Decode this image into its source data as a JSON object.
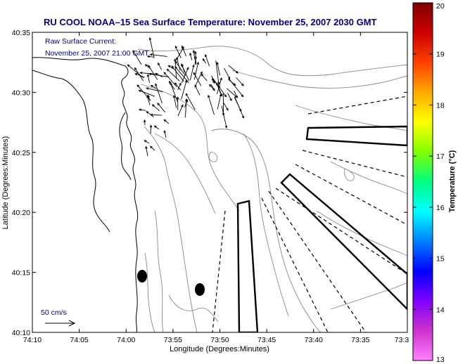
{
  "title": "RU COOL  NOAA–15  Sea Surface Temperature:  November 25, 2007 2030 GMT",
  "annotation": {
    "line1": "Raw Surface Current:",
    "line2": "November 25, 2007 21:00 GMT"
  },
  "scale": {
    "label": "50 cm/s"
  },
  "x_axis": {
    "label": "Longitude (Degrees:Minutes)",
    "ticks": [
      "74:10",
      "74:05",
      "74:00",
      "73:55",
      "73:50",
      "73:45",
      "73:40",
      "73:35",
      "73:3"
    ]
  },
  "y_axis": {
    "label": "Latitude (Degrees:Minutes)",
    "ticks": [
      "40:35",
      "40:30",
      "40:25",
      "40:20",
      "40:15",
      "40:10"
    ]
  },
  "colorbar": {
    "label": "Temperature (°C)",
    "ticks": [
      "20",
      "19",
      "18",
      "17",
      "16",
      "15",
      "14",
      "13"
    ],
    "min": 13,
    "max": 20,
    "colors": [
      "#ff80ff",
      "#cc33cc",
      "#8000ff",
      "#0000ff",
      "#0080ff",
      "#00ffff",
      "#00ff80",
      "#80ff00",
      "#ffff00",
      "#ffaa00",
      "#ff4000",
      "#cc0000",
      "#800000"
    ]
  }
}
